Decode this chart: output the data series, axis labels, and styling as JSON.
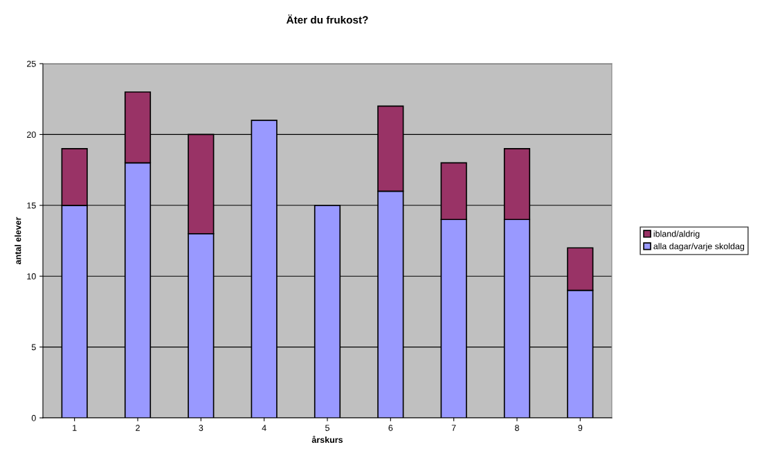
{
  "chart_data": {
    "type": "bar",
    "title": "Äter du frukost?",
    "xlabel": "årskurs",
    "ylabel": "antal elever",
    "categories": [
      "1",
      "2",
      "3",
      "4",
      "5",
      "6",
      "7",
      "8",
      "9"
    ],
    "stacked": true,
    "series": [
      {
        "name": "alla dagar/varje skoldag",
        "color": "#9999ff",
        "values": [
          15,
          18,
          13,
          21,
          15,
          16,
          14,
          14,
          9
        ]
      },
      {
        "name": "ibland/aldrig",
        "color": "#993366",
        "values": [
          4,
          5,
          7,
          null,
          null,
          6,
          4,
          5,
          3
        ]
      }
    ],
    "ylim": [
      0,
      25
    ],
    "yticks": [
      0,
      5,
      10,
      15,
      20,
      25
    ],
    "grid": "y",
    "legend": "right"
  }
}
